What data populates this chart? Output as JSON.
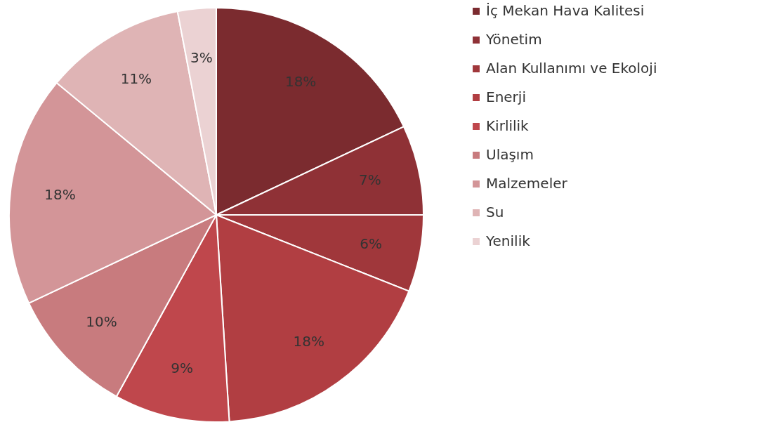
{
  "chart_data": {
    "type": "pie",
    "categories": [
      "İç Mekan Hava Kalitesi",
      "Yönetim",
      "Alan Kullanımı ve Ekoloji",
      "Enerji",
      "Kirlilik",
      "Ulaşım",
      "Malzemeler",
      "Su",
      "Yenilik"
    ],
    "values": [
      18,
      7,
      6,
      18,
      9,
      10,
      18,
      11,
      3
    ],
    "value_labels": [
      "18%",
      "7%",
      "6%",
      "18%",
      "9%",
      "10%",
      "18%",
      "11%",
      "3%"
    ],
    "colors": [
      "#7b2b2f",
      "#8f3136",
      "#a0373b",
      "#b13e42",
      "#bf474c",
      "#c87b7e",
      "#d39598",
      "#dfb4b5",
      "#ebd2d3"
    ],
    "legend": "right"
  }
}
